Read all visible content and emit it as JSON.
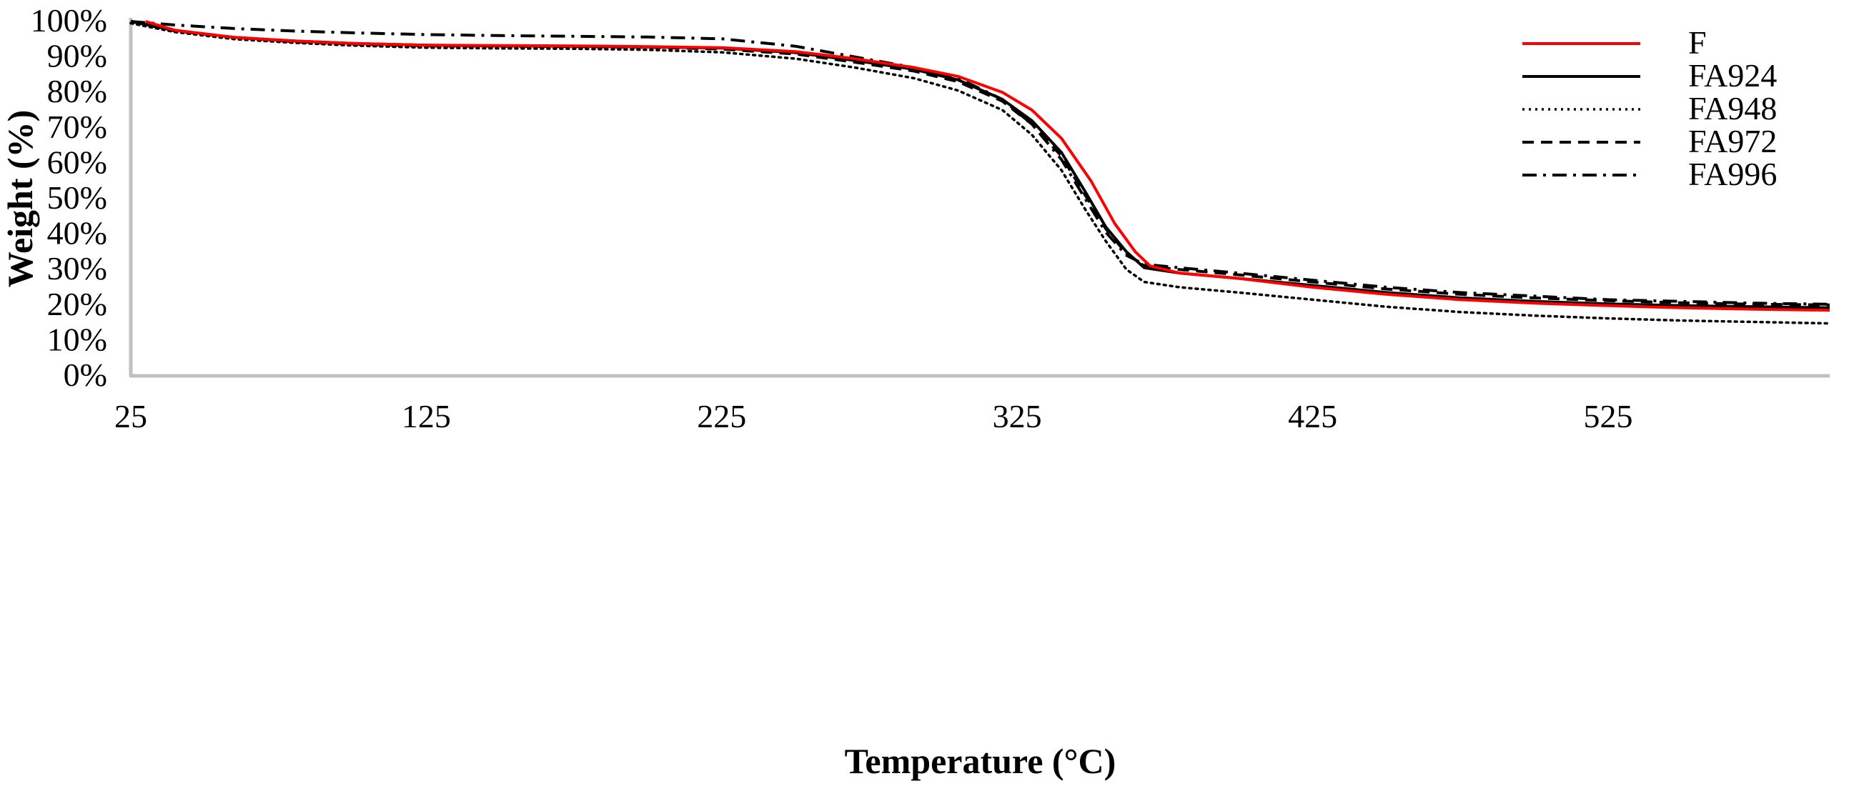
{
  "chart_data": {
    "type": "line",
    "title": "",
    "xlabel": "Temperature (°C)",
    "ylabel": "Weight (%)",
    "xlim": [
      25,
      600
    ],
    "ylim": [
      0,
      100
    ],
    "x_ticks": [
      25,
      125,
      225,
      325,
      425,
      525
    ],
    "y_ticks": [
      0,
      10,
      20,
      30,
      40,
      50,
      60,
      70,
      80,
      90,
      100
    ],
    "x_tick_labels": [
      "25",
      "125",
      "225",
      "325",
      "425",
      "525"
    ],
    "y_tick_labels": [
      "0%",
      "10%",
      "20%",
      "30%",
      "40%",
      "50%",
      "60%",
      "70%",
      "80%",
      "90%",
      "100%"
    ],
    "grid": false,
    "legend_position": "top-right",
    "series": [
      {
        "name": "F",
        "color": "#ff0000",
        "style": "solid",
        "points": [
          [
            30,
            100
          ],
          [
            40,
            97.5
          ],
          [
            60,
            95.5
          ],
          [
            80,
            94.5
          ],
          [
            100,
            93.8
          ],
          [
            125,
            93.3
          ],
          [
            150,
            93.2
          ],
          [
            175,
            93.1
          ],
          [
            200,
            92.9
          ],
          [
            225,
            92.6
          ],
          [
            250,
            91.5
          ],
          [
            270,
            89.5
          ],
          [
            290,
            87
          ],
          [
            305,
            84.5
          ],
          [
            320,
            80
          ],
          [
            330,
            75
          ],
          [
            340,
            67
          ],
          [
            350,
            55
          ],
          [
            358,
            43
          ],
          [
            365,
            35
          ],
          [
            370,
            31
          ],
          [
            380,
            29
          ],
          [
            400,
            27.5
          ],
          [
            425,
            25
          ],
          [
            450,
            23
          ],
          [
            475,
            21.5
          ],
          [
            500,
            20.5
          ],
          [
            525,
            19.8
          ],
          [
            550,
            19.2
          ],
          [
            575,
            18.8
          ],
          [
            600,
            18.5
          ]
        ]
      },
      {
        "name": "FA924",
        "color": "#000000",
        "style": "solid",
        "points": [
          [
            25,
            100
          ],
          [
            40,
            97.5
          ],
          [
            60,
            95.5
          ],
          [
            80,
            94.5
          ],
          [
            100,
            93.8
          ],
          [
            125,
            93.3
          ],
          [
            150,
            93.1
          ],
          [
            175,
            93
          ],
          [
            200,
            92.8
          ],
          [
            225,
            92.5
          ],
          [
            250,
            91.2
          ],
          [
            270,
            89
          ],
          [
            290,
            86.5
          ],
          [
            305,
            83.5
          ],
          [
            320,
            78
          ],
          [
            330,
            72
          ],
          [
            340,
            63
          ],
          [
            348,
            52
          ],
          [
            355,
            42
          ],
          [
            362,
            35
          ],
          [
            368,
            30.5
          ],
          [
            380,
            29
          ],
          [
            400,
            27.5
          ],
          [
            425,
            25.5
          ],
          [
            450,
            23.5
          ],
          [
            475,
            22
          ],
          [
            500,
            21
          ],
          [
            525,
            20.3
          ],
          [
            550,
            19.8
          ],
          [
            575,
            19.5
          ],
          [
            600,
            19.2
          ]
        ]
      },
      {
        "name": "FA948",
        "color": "#000000",
        "style": "dotted",
        "points": [
          [
            25,
            99.5
          ],
          [
            40,
            97
          ],
          [
            60,
            95
          ],
          [
            80,
            94
          ],
          [
            100,
            93.2
          ],
          [
            125,
            92.6
          ],
          [
            150,
            92.4
          ],
          [
            175,
            92.3
          ],
          [
            200,
            92
          ],
          [
            225,
            91.3
          ],
          [
            250,
            89.5
          ],
          [
            270,
            87
          ],
          [
            290,
            84
          ],
          [
            305,
            80.5
          ],
          [
            320,
            75
          ],
          [
            330,
            68
          ],
          [
            340,
            58
          ],
          [
            348,
            47
          ],
          [
            355,
            38
          ],
          [
            362,
            30
          ],
          [
            368,
            26.5
          ],
          [
            380,
            25
          ],
          [
            400,
            23.5
          ],
          [
            425,
            21.5
          ],
          [
            450,
            19.5
          ],
          [
            475,
            18
          ],
          [
            500,
            17
          ],
          [
            525,
            16.2
          ],
          [
            550,
            15.6
          ],
          [
            575,
            15.2
          ],
          [
            600,
            14.8
          ]
        ]
      },
      {
        "name": "FA972",
        "color": "#000000",
        "style": "dashed",
        "points": [
          [
            25,
            100
          ],
          [
            40,
            97.3
          ],
          [
            60,
            95.5
          ],
          [
            80,
            94.3
          ],
          [
            100,
            93.6
          ],
          [
            125,
            93.1
          ],
          [
            150,
            93
          ],
          [
            175,
            92.9
          ],
          [
            200,
            92.7
          ],
          [
            225,
            92.2
          ],
          [
            250,
            90.8
          ],
          [
            270,
            88.5
          ],
          [
            290,
            86
          ],
          [
            305,
            83
          ],
          [
            320,
            77.5
          ],
          [
            330,
            71
          ],
          [
            340,
            62
          ],
          [
            348,
            51
          ],
          [
            355,
            41.5
          ],
          [
            362,
            34.5
          ],
          [
            368,
            31
          ],
          [
            380,
            30
          ],
          [
            400,
            28.5
          ],
          [
            425,
            26.5
          ],
          [
            450,
            24.5
          ],
          [
            475,
            23
          ],
          [
            500,
            22
          ],
          [
            525,
            21.2
          ],
          [
            550,
            20.6
          ],
          [
            575,
            20.2
          ],
          [
            600,
            20
          ]
        ]
      },
      {
        "name": "FA996",
        "color": "#000000",
        "style": "dashdot",
        "points": [
          [
            25,
            100
          ],
          [
            40,
            99
          ],
          [
            60,
            98
          ],
          [
            80,
            97.3
          ],
          [
            100,
            96.8
          ],
          [
            125,
            96.3
          ],
          [
            150,
            96
          ],
          [
            175,
            95.8
          ],
          [
            200,
            95.6
          ],
          [
            225,
            95.1
          ],
          [
            250,
            93
          ],
          [
            270,
            90
          ],
          [
            290,
            87
          ],
          [
            305,
            84
          ],
          [
            320,
            78
          ],
          [
            330,
            71
          ],
          [
            340,
            61
          ],
          [
            348,
            50
          ],
          [
            355,
            40.5
          ],
          [
            362,
            34
          ],
          [
            368,
            31.5
          ],
          [
            380,
            30.5
          ],
          [
            400,
            29
          ],
          [
            425,
            27
          ],
          [
            450,
            25
          ],
          [
            475,
            23.5
          ],
          [
            500,
            22.5
          ],
          [
            525,
            21.5
          ],
          [
            550,
            21
          ],
          [
            575,
            20.5
          ],
          [
            600,
            20.2
          ]
        ]
      }
    ]
  }
}
